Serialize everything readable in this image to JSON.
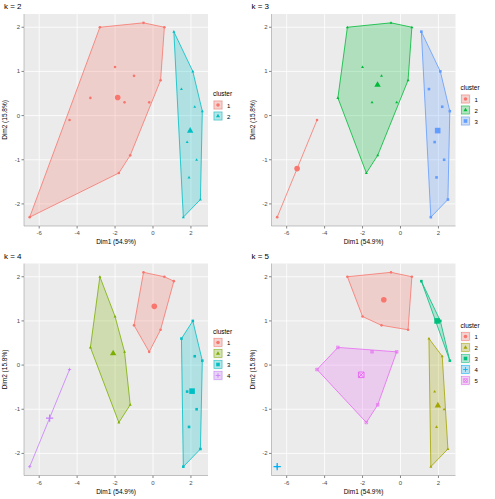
{
  "chart_data": [
    {
      "type": "scatter",
      "title": "k = 2",
      "x_label": "Dim1 (54.9%)",
      "y_label": "Dim2 (15.8%)",
      "legend_title": "cluster",
      "xlim": [
        -6.8,
        2.9
      ],
      "ylim": [
        -2.5,
        2.3
      ],
      "xticks": [
        -6,
        -4,
        -2,
        0,
        2
      ],
      "yticks": [
        -2,
        -1,
        0,
        1,
        2
      ],
      "grid": true,
      "legend": "right",
      "series": [
        {
          "name": "1",
          "color": "#F8766D",
          "marker": "circle",
          "x": [
            -6.5,
            -4.4,
            -3.3,
            -2.8,
            -1.8,
            -2.0,
            -1.5,
            -1.2,
            -1.0,
            -0.5,
            0.6,
            -0.2,
            0.4
          ],
          "y": [
            -2.3,
            -0.1,
            0.4,
            2.0,
            -1.3,
            1.1,
            0.3,
            -0.9,
            0.9,
            2.1,
            2.0,
            0.3,
            0.8
          ],
          "center": [
            -1.86,
            0.41
          ]
        },
        {
          "name": "2",
          "color": "#00BFC4",
          "marker": "triangle",
          "x": [
            1.1,
            2.1,
            2.6,
            1.5,
            2.2,
            1.8,
            2.3,
            2.5,
            1.6,
            1.9
          ],
          "y": [
            1.9,
            1.0,
            0.1,
            0.6,
            0.2,
            -0.6,
            -1.0,
            -1.9,
            -2.3,
            -1.4
          ],
          "center": [
            1.96,
            -0.34
          ]
        }
      ]
    },
    {
      "type": "scatter",
      "title": "k = 3",
      "x_label": "Dim1 (54.9%)",
      "y_label": "Dim2 (15.8%)",
      "legend_title": "cluster",
      "xlim": [
        -6.8,
        2.9
      ],
      "ylim": [
        -2.5,
        2.3
      ],
      "xticks": [
        -6,
        -4,
        -2,
        0,
        2
      ],
      "yticks": [
        -2,
        -1,
        0,
        1,
        2
      ],
      "grid": true,
      "legend": "right",
      "series": [
        {
          "name": "1",
          "color": "#F8766D",
          "marker": "circle",
          "x": [
            -6.5,
            -4.4
          ],
          "y": [
            -2.3,
            -0.1
          ],
          "center": [
            -5.45,
            -1.2
          ]
        },
        {
          "name": "2",
          "color": "#00BA38",
          "marker": "triangle",
          "x": [
            -3.3,
            -2.8,
            -1.8,
            -2.0,
            -1.5,
            -1.2,
            -1.0,
            -0.5,
            0.6,
            -0.2,
            0.4
          ],
          "y": [
            0.4,
            2.0,
            -1.3,
            1.1,
            0.3,
            -0.9,
            0.9,
            2.1,
            2.0,
            0.3,
            0.8
          ],
          "center": [
            -1.21,
            0.7
          ]
        },
        {
          "name": "3",
          "color": "#619CFF",
          "marker": "square",
          "x": [
            1.1,
            2.1,
            2.6,
            1.5,
            2.2,
            1.8,
            2.3,
            2.5,
            1.6,
            1.9
          ],
          "y": [
            1.9,
            1.0,
            0.1,
            0.6,
            0.2,
            -0.6,
            -1.0,
            -1.9,
            -2.3,
            -1.4
          ],
          "center": [
            1.96,
            -0.34
          ]
        }
      ]
    },
    {
      "type": "scatter",
      "title": "k = 4",
      "x_label": "Dim1 (54.9%)",
      "y_label": "Dim2 (15.8%)",
      "legend_title": "cluster",
      "xlim": [
        -6.8,
        2.9
      ],
      "ylim": [
        -2.5,
        2.3
      ],
      "xticks": [
        -6,
        -4,
        -2,
        0,
        2
      ],
      "yticks": [
        -2,
        -1,
        0,
        1,
        2
      ],
      "grid": true,
      "legend": "right",
      "series": [
        {
          "name": "1",
          "color": "#F8766D",
          "marker": "circle",
          "x": [
            -1.0,
            -0.5,
            0.6,
            -0.2,
            0.4,
            1.1
          ],
          "y": [
            0.9,
            2.1,
            2.0,
            0.3,
            0.8,
            1.9
          ],
          "center": [
            0.07,
            1.33
          ]
        },
        {
          "name": "2",
          "color": "#7CAE00",
          "marker": "triangle",
          "x": [
            -3.3,
            -2.8,
            -1.8,
            -2.0,
            -1.5,
            -1.2
          ],
          "y": [
            0.4,
            2.0,
            -1.3,
            1.1,
            0.3,
            -0.9
          ],
          "center": [
            -2.1,
            0.27
          ]
        },
        {
          "name": "3",
          "color": "#00BFC4",
          "marker": "square",
          "x": [
            2.1,
            2.6,
            1.5,
            2.2,
            1.8,
            2.3,
            2.5,
            1.6,
            1.9
          ],
          "y": [
            1.0,
            0.1,
            0.6,
            0.2,
            -0.6,
            -1.0,
            -1.9,
            -2.3,
            -1.4
          ],
          "center": [
            2.06,
            -0.59
          ]
        },
        {
          "name": "4",
          "color": "#C77CFF",
          "marker": "plus",
          "x": [
            -6.5,
            -4.4
          ],
          "y": [
            -2.3,
            -0.1
          ],
          "center": [
            -5.45,
            -1.2
          ]
        }
      ]
    },
    {
      "type": "scatter",
      "title": "k = 5",
      "x_label": "Dim1 (54.9%)",
      "y_label": "Dim2 (15.8%)",
      "legend_title": "cluster",
      "xlim": [
        -6.8,
        2.9
      ],
      "ylim": [
        -2.5,
        2.3
      ],
      "xticks": [
        -6,
        -4,
        -2,
        0,
        2
      ],
      "yticks": [
        -2,
        -1,
        0,
        1,
        2
      ],
      "grid": true,
      "legend": "right",
      "series": [
        {
          "name": "1",
          "color": "#F8766D",
          "marker": "circle",
          "x": [
            -2.8,
            -2.0,
            -1.0,
            -0.5,
            0.6,
            0.4
          ],
          "y": [
            2.0,
            1.1,
            0.9,
            2.1,
            2.0,
            0.8
          ],
          "center": [
            -0.88,
            1.48
          ]
        },
        {
          "name": "2",
          "color": "#A3A500",
          "marker": "triangle",
          "x": [
            1.5,
            2.2,
            1.8,
            2.3,
            2.5,
            1.6,
            1.9
          ],
          "y": [
            0.6,
            0.2,
            -0.6,
            -1.0,
            -1.9,
            -2.3,
            -1.4
          ],
          "center": [
            1.97,
            -0.91
          ]
        },
        {
          "name": "3",
          "color": "#00BF7D",
          "marker": "square",
          "x": [
            1.1,
            2.1,
            2.6
          ],
          "y": [
            1.9,
            1.0,
            0.1
          ],
          "center": [
            1.93,
            1.0
          ]
        },
        {
          "name": "4",
          "color": "#00B0F6",
          "marker": "plus",
          "x": [
            -6.5
          ],
          "y": [
            -2.3
          ],
          "center": [
            -6.5,
            -2.3
          ]
        },
        {
          "name": "5",
          "color": "#E76BF3",
          "marker": "square_cross",
          "x": [
            -4.4,
            -3.3,
            -1.8,
            -1.5,
            -1.2,
            -0.2
          ],
          "y": [
            -0.1,
            0.4,
            -1.3,
            0.3,
            -0.9,
            0.3
          ],
          "center": [
            -2.07,
            -0.22
          ]
        }
      ]
    }
  ]
}
